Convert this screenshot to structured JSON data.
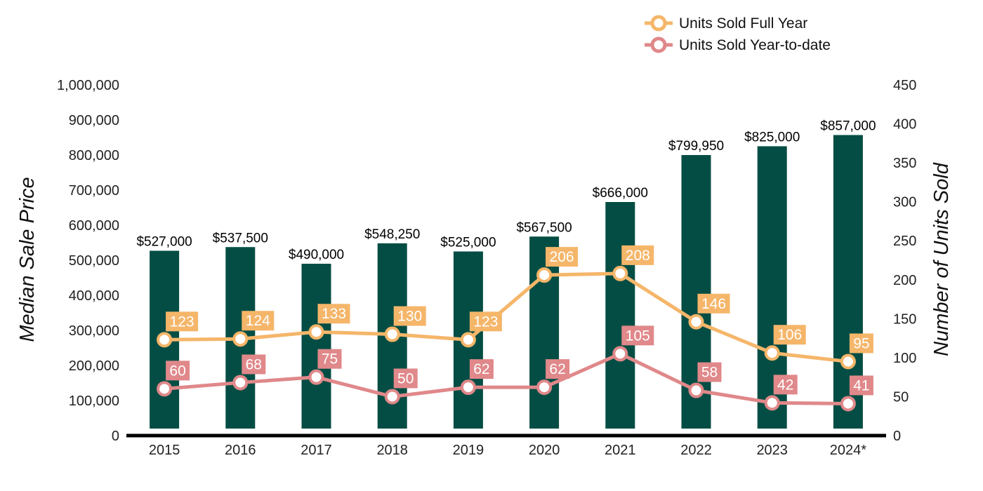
{
  "chart_data": {
    "type": "bar",
    "categories": [
      "2015",
      "2016",
      "2017",
      "2018",
      "2019",
      "2020",
      "2021",
      "2022",
      "2023",
      "2024*"
    ],
    "series": [
      {
        "kind": "bar",
        "axis": "left",
        "values": [
          527000,
          537500,
          490000,
          548250,
          525000,
          567500,
          666000,
          799950,
          825000,
          857000
        ],
        "value_labels": [
          "$527,000",
          "$537,500",
          "$490,000",
          "$548,250",
          "$525,000",
          "$567,500",
          "$666,000",
          "$799,950",
          "$825,000",
          "$857,000"
        ],
        "color": "#034d44"
      },
      {
        "kind": "line",
        "axis": "right",
        "name": "Units Sold Full Year",
        "values": [
          123,
          124,
          133,
          130,
          123,
          206,
          208,
          146,
          106,
          95
        ],
        "color": "#f5b66a"
      },
      {
        "kind": "line",
        "axis": "right",
        "name": "Units Sold Year-to-date",
        "values": [
          60,
          68,
          75,
          50,
          62,
          62,
          105,
          58,
          42,
          41
        ],
        "color": "#e0888a"
      }
    ],
    "ylabel": "Median Sale Price",
    "y2label": "Number of Units Sold",
    "ylim": [
      0,
      1000000
    ],
    "y2lim": [
      0,
      450
    ],
    "yticks": [
      "0",
      "100,000",
      "200,000",
      "300,000",
      "400,000",
      "500,000",
      "600,000",
      "700,000",
      "800,000",
      "900,000",
      "1,000,000"
    ],
    "y2ticks": [
      "0",
      "50",
      "100",
      "150",
      "200",
      "250",
      "300",
      "350",
      "400",
      "450"
    ],
    "legend": "top-right",
    "grid": false
  }
}
